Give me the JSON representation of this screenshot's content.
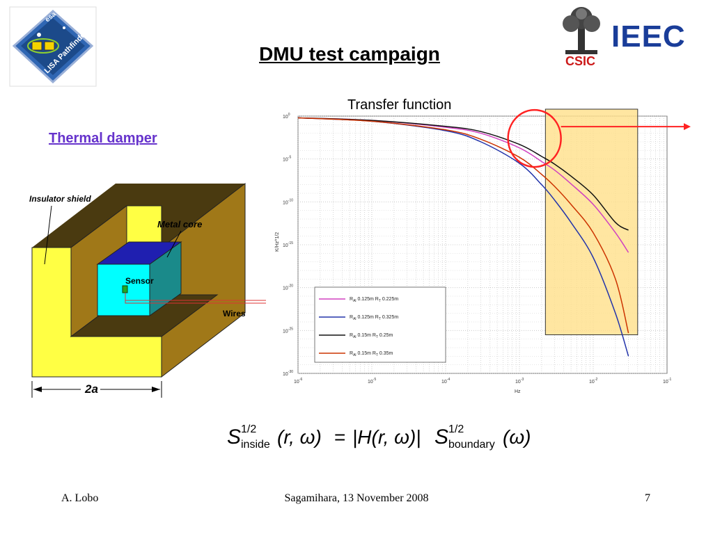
{
  "slide": {
    "title": "DMU test campaign",
    "damper_heading": "Thermal damper",
    "chart_title": "Transfer function"
  },
  "diagram": {
    "labels": {
      "insulator": "Insulator shield",
      "metal_core": "Metal core",
      "sensor": "Sensor",
      "wires": "Wires",
      "dimension": "2a"
    }
  },
  "logos": {
    "lisa_text": "LISA Pathfinder",
    "esa_text": "esa",
    "ieec_text": "IEEC",
    "csic_text": "CSIC"
  },
  "equation": {
    "lhs_symbol": "S",
    "lhs_sup": "1/2",
    "lhs_sub": "inside",
    "lhs_args": "(r, ω)",
    "eq": "=",
    "transfer": "|H(r, ω)|",
    "rhs_symbol": "S",
    "rhs_sup": "1/2",
    "rhs_sub": "boundary",
    "rhs_args": "(ω)"
  },
  "footer": {
    "author": "A. Lobo",
    "event": "Sagamihara, 13 November 2008",
    "page": "7"
  },
  "colors": {
    "shield": "#ffff44",
    "shield_side": "#a07818",
    "shield_inner": "#4a3a10",
    "core_top": "#1f1fb0",
    "core_front": "#00ffff",
    "core_side": "#1a8a8a",
    "title_link": "#6633cc",
    "highlight": "#ffe08a",
    "circle": "#ff2222"
  },
  "chart_data": {
    "type": "line",
    "title": "Transfer function",
    "xlabel": "Hz",
    "ylabel": "K/Hz^1/2",
    "xscale": "log",
    "yscale": "log",
    "xlim": [
      1e-06,
      0.1
    ],
    "ylim": [
      1e-30,
      1
    ],
    "x_tick_labels": [
      {
        "base": "10",
        "exp": "-6"
      },
      {
        "base": "10",
        "exp": "-5"
      },
      {
        "base": "10",
        "exp": "-4"
      },
      {
        "base": "10",
        "exp": "-3"
      },
      {
        "base": "10",
        "exp": "-2"
      },
      {
        "base": "10",
        "exp": "-1"
      }
    ],
    "y_tick_labels": [
      {
        "base": "10",
        "exp": "0"
      },
      {
        "base": "10",
        "exp": "-5"
      },
      {
        "base": "10",
        "exp": "-10"
      },
      {
        "base": "10",
        "exp": "-15"
      },
      {
        "base": "10",
        "exp": "-20"
      },
      {
        "base": "10",
        "exp": "-25"
      },
      {
        "base": "10",
        "exp": "-30"
      }
    ],
    "grid": true,
    "legend_position": "lower-left",
    "highlight_region_x": [
      0.00225,
      0.04
    ],
    "highlight_region_y_log10": [
      -25.5,
      1
    ],
    "circle_marker": {
      "x": 0.0016,
      "y_log10": -2.6
    },
    "series": [
      {
        "name": "R_Al 0.125m R_T 0.225m",
        "legend_main": "R",
        "legend_sub1": "Al",
        "legend_mid": " 0.125m R",
        "legend_sub2": "T",
        "legend_end": " 0.225m",
        "color": "#d040c0",
        "x": [
          1e-06,
          1e-05,
          0.0001,
          0.0003,
          0.001,
          0.002,
          0.003,
          0.005,
          0.01,
          0.02,
          0.03
        ],
        "y_log10": [
          -0.2,
          -0.5,
          -1.3,
          -2.0,
          -3.7,
          -5.3,
          -6.3,
          -7.9,
          -10.3,
          -13.6,
          -15.9
        ]
      },
      {
        "name": "R_Al 0.125m R_T 0.325m",
        "legend_main": "R",
        "legend_sub1": "Al",
        "legend_mid": " 0.125m R",
        "legend_sub2": "T",
        "legend_end": " 0.325m",
        "color": "#2233aa",
        "x": [
          1e-06,
          1e-05,
          0.0001,
          0.0003,
          0.001,
          0.002,
          0.003,
          0.005,
          0.01,
          0.02,
          0.03
        ],
        "y_log10": [
          -0.2,
          -0.6,
          -1.7,
          -3.0,
          -5.5,
          -8.0,
          -9.8,
          -12.4,
          -16.5,
          -23.0,
          -28.0
        ]
      },
      {
        "name": "R_Al 0.15m R_T 0.25m",
        "legend_main": "R",
        "legend_sub1": "Al",
        "legend_mid": " 0.15m  R",
        "legend_sub2": "T",
        "legend_end": " 0.25m",
        "color": "#111111",
        "x": [
          1e-06,
          1e-05,
          0.0001,
          0.0003,
          0.001,
          0.002,
          0.003,
          0.005,
          0.01,
          0.02,
          0.03
        ],
        "y_log10": [
          -0.2,
          -0.5,
          -1.2,
          -1.8,
          -3.3,
          -4.7,
          -5.6,
          -7.0,
          -9.2,
          -12.4,
          -13.3
        ]
      },
      {
        "name": "R_Al 0.15m R_T 0.35m",
        "legend_main": "R",
        "legend_sub1": "Al",
        "legend_mid": " 0.15m R",
        "legend_sub2": "T",
        "legend_end": " 0.35m",
        "color": "#cc3300",
        "x": [
          1e-06,
          1e-05,
          0.0001,
          0.0003,
          0.001,
          0.002,
          0.003,
          0.005,
          0.01,
          0.02,
          0.03
        ],
        "y_log10": [
          -0.2,
          -0.6,
          -1.6,
          -2.7,
          -4.8,
          -6.8,
          -8.2,
          -10.3,
          -13.6,
          -19.0,
          -25.3
        ]
      }
    ]
  }
}
